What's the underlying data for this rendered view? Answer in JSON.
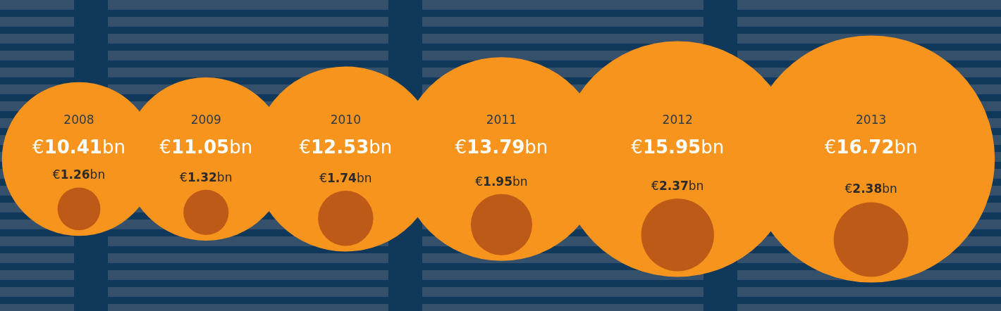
{
  "chart_data": {
    "type": "other",
    "categories": [
      "2008",
      "2009",
      "2010",
      "2011",
      "2012",
      "2013"
    ],
    "series": [
      {
        "color": "#f7941d",
        "values": [
          10.41,
          11.05,
          12.53,
          13.79,
          15.95,
          16.72
        ],
        "value_labels": [
          "€10.41bn",
          "€11.05bn",
          "€12.53bn",
          "€13.79bn",
          "€15.95bn",
          "€16.72bn"
        ]
      },
      {
        "color": "#bd5a17",
        "values": [
          1.26,
          1.32,
          1.74,
          1.95,
          2.37,
          2.38
        ],
        "value_labels": [
          "€1.26bn",
          "€1.32bn",
          "€1.74bn",
          "€1.95bn",
          "€2.37bn",
          "€2.38bn"
        ]
      }
    ]
  }
}
